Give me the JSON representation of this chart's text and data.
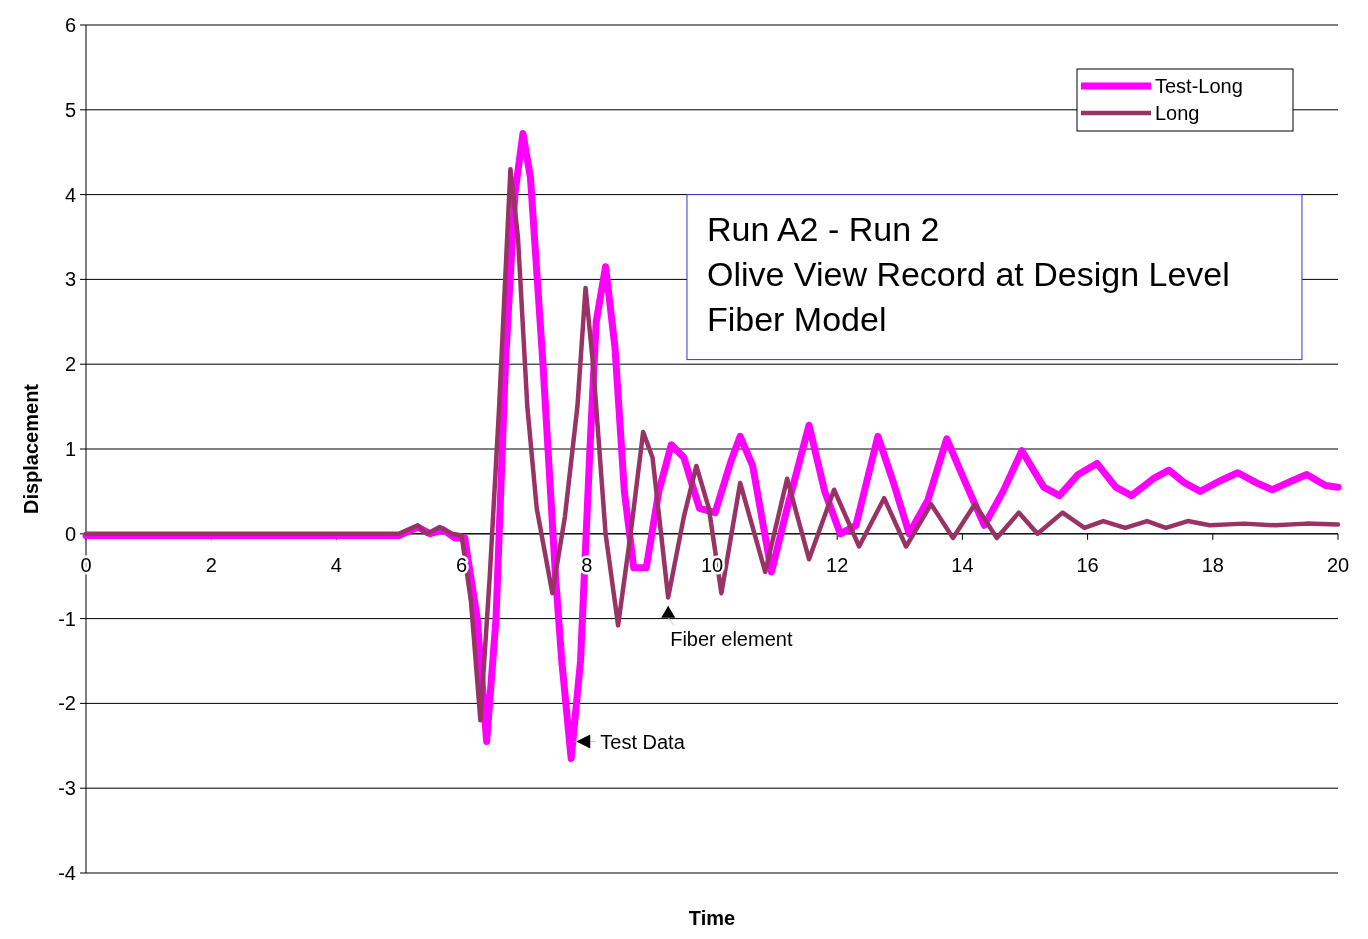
{
  "chart_data": {
    "type": "line",
    "xlabel": "Time",
    "ylabel": "Displacement",
    "xlim": [
      0,
      20
    ],
    "ylim": [
      -4,
      6
    ],
    "xticks": [
      0,
      2,
      4,
      6,
      8,
      10,
      12,
      14,
      16,
      18,
      20
    ],
    "yticks": [
      -4,
      -3,
      -2,
      -1,
      0,
      1,
      2,
      3,
      4,
      5,
      6
    ],
    "grid": "y",
    "legend": "top right",
    "annotations": [
      "Run A2 - Run 2\nOlive View Record at Design Level\nFiber Model",
      {
        "text": "Fiber element",
        "x": 9.3,
        "y": -0.8
      },
      {
        "text": "Test Data",
        "x": 7.8,
        "y": -2.45
      }
    ],
    "series": [
      {
        "name": "Test-Long",
        "color": "#ff00ff",
        "x": [
          0,
          5.0,
          5.3,
          5.5,
          5.7,
          5.9,
          6.05,
          6.25,
          6.4,
          6.55,
          6.7,
          6.85,
          6.98,
          7.1,
          7.3,
          7.5,
          7.6,
          7.75,
          7.9,
          8.05,
          8.15,
          8.3,
          8.45,
          8.6,
          8.75,
          8.95,
          9.15,
          9.35,
          9.55,
          9.8,
          10.05,
          10.3,
          10.45,
          10.65,
          10.95,
          11.2,
          11.55,
          11.8,
          12.05,
          12.3,
          12.65,
          12.9,
          13.15,
          13.45,
          13.75,
          14.05,
          14.35,
          14.65,
          14.95,
          15.3,
          15.55,
          15.85,
          16.15,
          16.45,
          16.7,
          17.05,
          17.3,
          17.55,
          17.8,
          18.1,
          18.4,
          18.7,
          18.95,
          19.25,
          19.5,
          19.8,
          20
        ],
        "values": [
          -0.02,
          -0.02,
          0.08,
          0,
          0.05,
          -0.05,
          -0.05,
          -1.0,
          -2.45,
          -1.0,
          2.0,
          4.0,
          4.72,
          4.2,
          2.0,
          -0.5,
          -1.5,
          -2.65,
          -1.5,
          1.0,
          2.5,
          3.15,
          2.2,
          0.5,
          -0.4,
          -0.4,
          0.5,
          1.05,
          0.9,
          0.3,
          0.25,
          0.85,
          1.15,
          0.8,
          -0.45,
          0.3,
          1.28,
          0.5,
          0.0,
          0.1,
          1.15,
          0.6,
          0.0,
          0.4,
          1.12,
          0.6,
          0.1,
          0.5,
          0.98,
          0.55,
          0.45,
          0.7,
          0.83,
          0.55,
          0.45,
          0.65,
          0.75,
          0.6,
          0.5,
          0.62,
          0.72,
          0.6,
          0.52,
          0.62,
          0.7,
          0.57,
          0.55
        ]
      },
      {
        "name": "Long",
        "color": "#993366",
        "x": [
          0,
          5.0,
          5.3,
          5.45,
          5.65,
          5.85,
          6.0,
          6.15,
          6.3,
          6.45,
          6.6,
          6.78,
          6.9,
          7.05,
          7.2,
          7.45,
          7.65,
          7.85,
          7.98,
          8.1,
          8.3,
          8.5,
          8.7,
          8.9,
          9.05,
          9.3,
          9.55,
          9.75,
          9.95,
          10.15,
          10.45,
          10.85,
          11.2,
          11.55,
          11.95,
          12.35,
          12.75,
          13.1,
          13.5,
          13.85,
          14.2,
          14.55,
          14.9,
          15.2,
          15.6,
          15.95,
          16.25,
          16.6,
          16.95,
          17.25,
          17.6,
          17.95,
          18.5,
          19.0,
          19.5,
          20
        ],
        "values": [
          0,
          0,
          0.1,
          0.0,
          0.08,
          0.0,
          -0.02,
          -0.8,
          -2.2,
          -0.5,
          1.5,
          4.3,
          3.5,
          1.5,
          0.3,
          -0.7,
          0.2,
          1.5,
          2.9,
          2.0,
          0.0,
          -1.08,
          0.0,
          1.2,
          0.9,
          -0.75,
          0.2,
          0.8,
          0.3,
          -0.7,
          0.6,
          -0.45,
          0.65,
          -0.3,
          0.52,
          -0.15,
          0.42,
          -0.15,
          0.35,
          -0.05,
          0.35,
          -0.05,
          0.25,
          0.0,
          0.25,
          0.07,
          0.15,
          0.07,
          0.15,
          0.07,
          0.15,
          0.1,
          0.12,
          0.1,
          0.12,
          0.11
        ]
      }
    ]
  }
}
